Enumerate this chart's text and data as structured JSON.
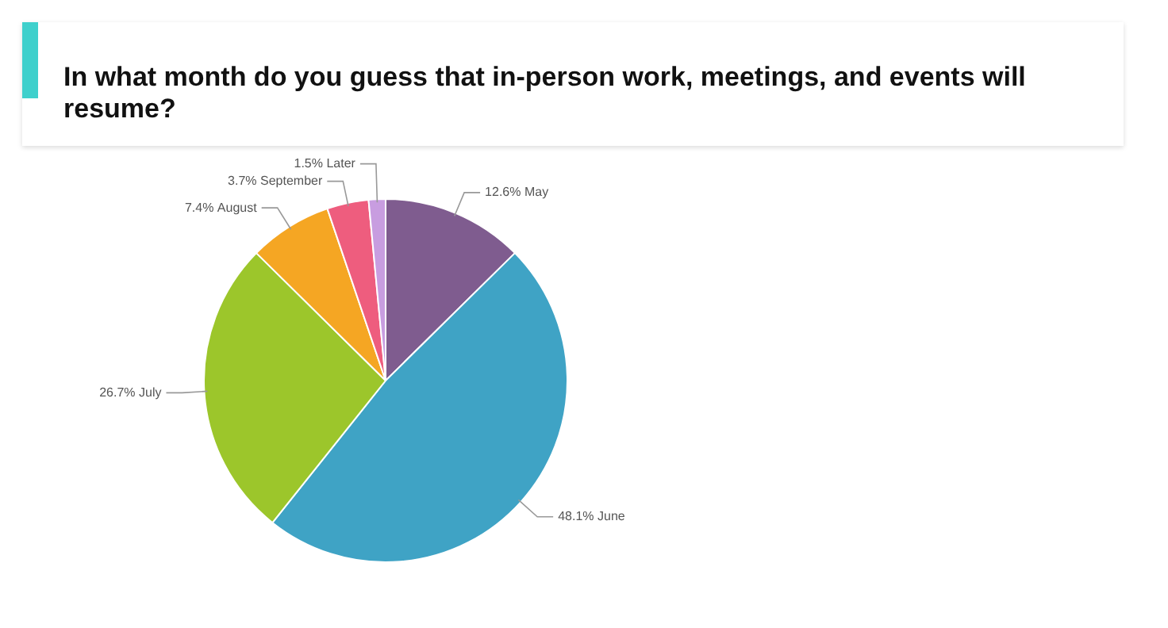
{
  "chart_data": {
    "type": "pie",
    "title": "In what month do you guess that in-person work, meetings, and events will resume?",
    "categories": [
      "May",
      "June",
      "July",
      "August",
      "September",
      "Later"
    ],
    "values": [
      12.6,
      48.1,
      26.7,
      7.4,
      3.7,
      1.5
    ],
    "colors": [
      "#7f5c8f",
      "#3fa3c5",
      "#9cc62b",
      "#f5a623",
      "#ee5d7e",
      "#c89de0"
    ],
    "value_labels": [
      "12.6%",
      "48.1%",
      "26.7%",
      "7.4%",
      "3.7%",
      "1.5%"
    ],
    "legend": false
  }
}
